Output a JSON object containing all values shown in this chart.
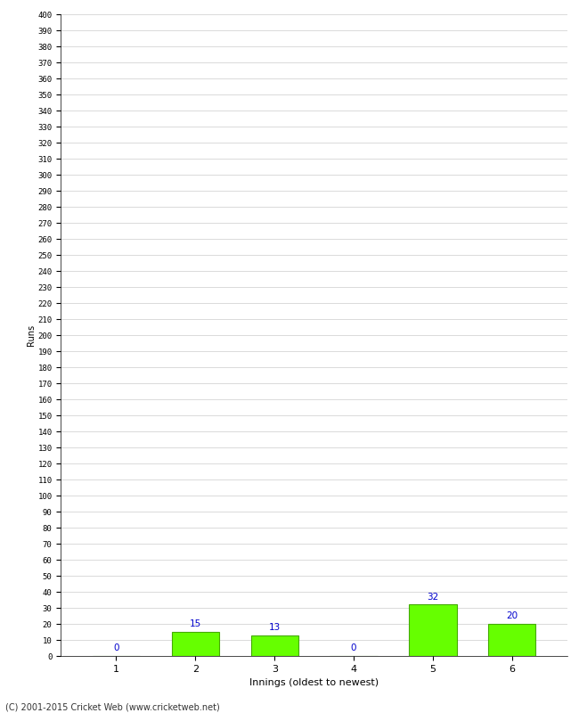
{
  "categories": [
    1,
    2,
    3,
    4,
    5,
    6
  ],
  "values": [
    0,
    15,
    13,
    0,
    32,
    20
  ],
  "bar_color": "#66ff00",
  "bar_edge_color": "#44aa00",
  "label_color": "#0000cc",
  "xlabel": "Innings (oldest to newest)",
  "ylabel": "Runs",
  "ylim": [
    0,
    400
  ],
  "ytick_step": 10,
  "background_color": "#ffffff",
  "grid_color": "#cccccc",
  "footer": "(C) 2001-2015 Cricket Web (www.cricketweb.net)"
}
